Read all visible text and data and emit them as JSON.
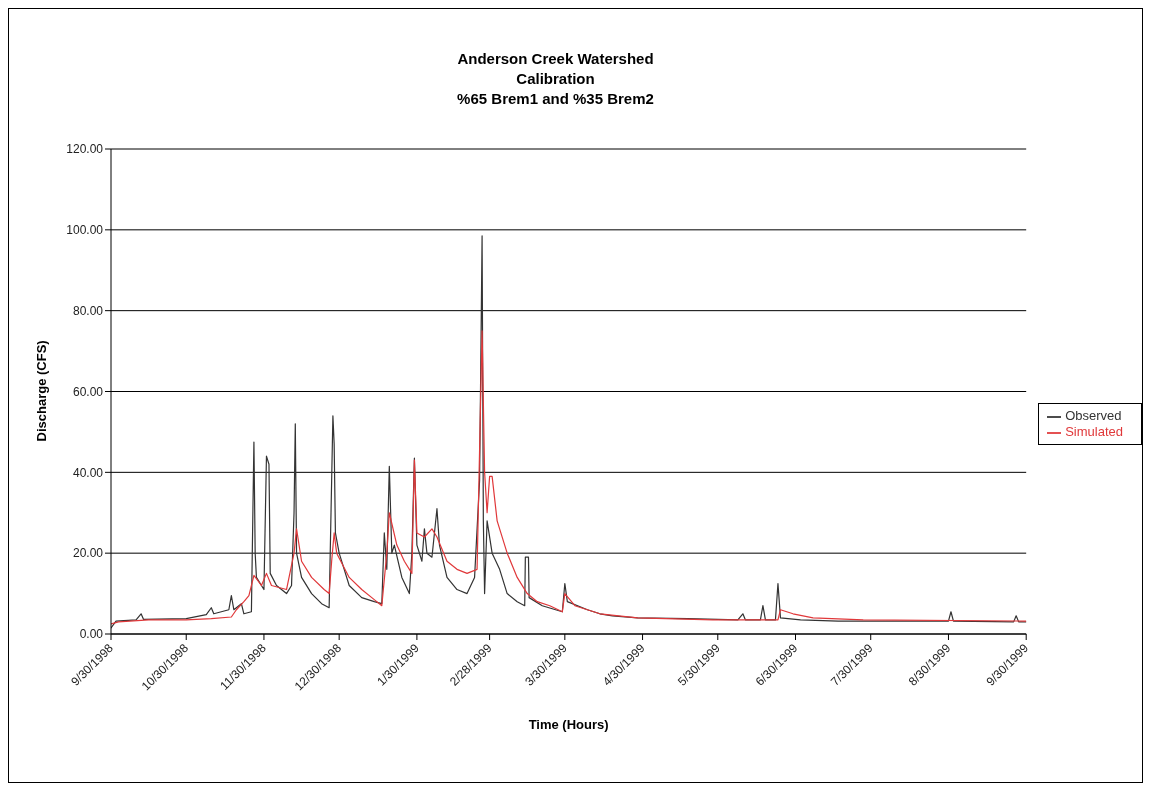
{
  "chart_data": {
    "type": "line",
    "title": "Anderson Creek Watershed\nCalibration\n%65 Brem1 and %35 Brem2",
    "xlabel": "Time (Hours)",
    "ylabel": "Discharge (CFS)",
    "xlim": [
      "1998-09-30",
      "1999-09-30"
    ],
    "xticks": [
      {
        "value": "1998-09-30",
        "label": "9/30/1998"
      },
      {
        "value": "1998-10-30",
        "label": "10/30/1998"
      },
      {
        "value": "1998-11-30",
        "label": "11/30/1998"
      },
      {
        "value": "1998-12-30",
        "label": "12/30/1998"
      },
      {
        "value": "1999-01-30",
        "label": "1/30/1999"
      },
      {
        "value": "1999-02-28",
        "label": "2/28/1999"
      },
      {
        "value": "1999-03-30",
        "label": "3/30/1999"
      },
      {
        "value": "1999-04-30",
        "label": "4/30/1999"
      },
      {
        "value": "1999-05-30",
        "label": "5/30/1999"
      },
      {
        "value": "1999-06-30",
        "label": "6/30/1999"
      },
      {
        "value": "1999-07-30",
        "label": "7/30/1999"
      },
      {
        "value": "1999-08-30",
        "label": "8/30/1999"
      },
      {
        "value": "1999-09-30",
        "label": "9/30/1999"
      }
    ],
    "ylim": [
      0,
      120
    ],
    "yticks": [
      {
        "value": 0,
        "label": "0.00"
      },
      {
        "value": 20,
        "label": "20.00"
      },
      {
        "value": 40,
        "label": "40.00"
      },
      {
        "value": 60,
        "label": "60.00"
      },
      {
        "value": 80,
        "label": "80.00"
      },
      {
        "value": 100,
        "label": "100.00"
      },
      {
        "value": 120,
        "label": "120.00"
      }
    ],
    "grid": "y",
    "legend": "right",
    "line_style": "solid",
    "marker": "none",
    "series": [
      {
        "name": "Observed",
        "color": "#333333",
        "x": [
          "1998-09-30",
          "1998-10-02",
          "1998-10-10",
          "1998-10-12",
          "1998-10-13",
          "1998-10-30",
          "1998-11-07",
          "1998-11-09",
          "1998-11-10",
          "1998-11-16",
          "1998-11-17",
          "1998-11-18",
          "1998-11-21",
          "1998-11-22",
          "1998-11-25",
          "1998-11-26",
          "1998-11-26T12:00",
          "1998-11-27",
          "1998-11-30",
          "1998-12-01",
          "1998-12-02",
          "1998-12-02T12:00",
          "1998-12-05",
          "1998-12-09",
          "1998-12-11",
          "1998-12-12",
          "1998-12-12T12:00",
          "1998-12-13",
          "1998-12-15",
          "1998-12-19",
          "1998-12-23",
          "1998-12-26",
          "1998-12-27",
          "1998-12-27T12:00",
          "1998-12-28",
          "1998-12-28T12:00",
          "1998-12-30",
          "1999-01-03",
          "1999-01-08",
          "1999-01-13",
          "1999-01-16",
          "1999-01-17",
          "1999-01-18",
          "1999-01-19",
          "1999-01-20",
          "1999-01-21",
          "1999-01-24",
          "1999-01-27",
          "1999-01-28",
          "1999-01-29",
          "1999-01-30",
          "1999-02-01",
          "1999-02-02",
          "1999-02-03",
          "1999-02-05",
          "1999-02-07",
          "1999-02-08",
          "1999-02-11",
          "1999-02-15",
          "1999-02-19",
          "1999-02-22",
          "1999-02-24",
          "1999-02-25",
          "1999-02-25T12:00",
          "1999-02-26",
          "1999-02-27",
          "1999-03-01",
          "1999-03-04",
          "1999-03-07",
          "1999-03-11",
          "1999-03-14",
          "1999-03-14T06:00",
          "1999-03-15T12:00",
          "1999-03-15T18:00",
          "1999-03-21",
          "1999-03-29",
          "1999-03-30",
          "1999-03-31",
          "1999-04-08",
          "1999-04-13",
          "1999-04-18",
          "1999-04-28",
          "1999-05-18",
          "1999-06-07",
          "1999-06-09",
          "1999-06-10",
          "1999-06-16",
          "1999-06-17",
          "1999-06-18",
          "1999-06-22",
          "1999-06-23",
          "1999-06-24",
          "1999-07-02",
          "1999-07-17",
          "1999-08-16",
          "1999-08-30",
          "1999-08-31",
          "1999-09-01",
          "1999-09-25",
          "1999-09-26",
          "1999-09-27",
          "1999-09-30"
        ],
        "values": [
          1.5,
          3.2,
          3.5,
          5,
          3.6,
          3.8,
          4.8,
          6.5,
          5,
          6,
          9.5,
          6,
          7.5,
          5,
          5.5,
          47.5,
          20,
          14,
          11,
          44,
          42,
          15,
          12,
          10,
          12,
          30,
          52,
          20,
          14,
          10,
          7.5,
          6.5,
          38,
          54,
          47,
          25,
          20,
          12,
          9,
          8,
          7.5,
          25,
          16,
          41.5,
          20,
          22,
          14,
          10,
          20,
          43.5,
          22,
          18,
          26,
          20,
          19,
          31,
          22,
          14,
          11,
          10,
          14,
          38,
          98.5,
          28,
          10,
          28,
          20,
          16,
          10,
          8,
          7,
          19,
          19,
          9,
          7,
          5.5,
          12.5,
          8,
          6,
          5,
          4.5,
          4,
          3.8,
          3.5,
          5,
          3.5,
          3.5,
          7,
          3.5,
          3.5,
          12.5,
          4,
          3.5,
          3.2,
          3.2,
          3.2,
          5.5,
          3.2,
          3,
          4.5,
          3,
          3
        ]
      },
      {
        "name": "Simulated",
        "color": "#e0383a",
        "x": [
          "1998-09-30",
          "1998-10-03",
          "1998-10-15",
          "1998-10-30",
          "1998-11-09",
          "1998-11-17",
          "1998-11-19",
          "1998-11-22",
          "1998-11-24",
          "1998-11-26",
          "1998-11-29",
          "1998-12-01",
          "1998-12-03",
          "1998-12-09",
          "1998-12-12",
          "1998-12-13",
          "1998-12-15",
          "1998-12-19",
          "1998-12-24",
          "1998-12-26",
          "1998-12-27",
          "1998-12-28",
          "1998-12-29",
          "1999-01-03",
          "1999-01-08",
          "1999-01-13",
          "1999-01-16",
          "1999-01-18",
          "1999-01-19",
          "1999-01-22",
          "1999-01-25",
          "1999-01-28",
          "1999-01-29",
          "1999-01-30",
          "1999-02-02",
          "1999-02-05",
          "1999-02-07",
          "1999-02-11",
          "1999-02-15",
          "1999-02-19",
          "1999-02-23",
          "1999-02-25",
          "1999-02-26",
          "1999-02-27",
          "1999-02-28",
          "1999-03-01",
          "1999-03-03",
          "1999-03-07",
          "1999-03-11",
          "1999-03-15",
          "1999-03-19",
          "1999-03-24",
          "1999-03-29",
          "1999-03-30",
          "1999-04-03",
          "1999-04-13",
          "1999-04-28",
          "1999-05-28",
          "1999-06-23",
          "1999-06-24",
          "1999-06-29",
          "1999-07-07",
          "1999-07-27",
          "1999-09-30"
        ],
        "values": [
          2.5,
          3,
          3.5,
          3.5,
          3.8,
          4.2,
          6,
          8,
          9.5,
          14.5,
          12,
          15,
          12,
          11,
          20,
          26,
          18,
          14,
          11,
          10,
          18,
          25,
          20,
          14,
          11,
          8.5,
          7,
          20,
          30,
          22,
          18,
          15,
          43,
          25,
          24,
          26,
          24,
          18,
          16,
          15,
          16,
          75,
          40,
          30,
          39,
          39,
          28,
          20,
          14,
          10,
          8,
          7,
          5.5,
          10,
          7,
          5,
          4,
          3.5,
          3.5,
          6,
          5,
          4,
          3.5,
          3.2
        ]
      }
    ]
  }
}
